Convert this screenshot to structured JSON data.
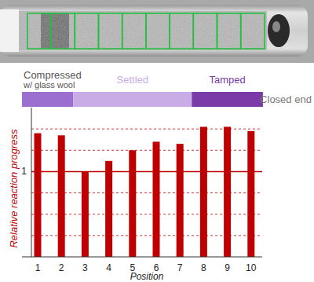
{
  "chart_data": {
    "type": "bar",
    "x_label": "Position",
    "y_label": "Relative reaction progress",
    "categories": [
      "1",
      "2",
      "3",
      "4",
      "5",
      "6",
      "7",
      "8",
      "9",
      "10"
    ],
    "values": [
      1.18,
      1.17,
      1.0,
      1.05,
      1.1,
      1.14,
      1.13,
      1.21,
      1.21,
      1.19
    ],
    "color": "#c00000",
    "ylim": [
      0.6,
      1.3
    ],
    "yticks": [
      {
        "value": 0.7,
        "label": null
      },
      {
        "value": 0.8,
        "label": null
      },
      {
        "value": 0.9,
        "label": null
      },
      1,
      {
        "value": 1.1,
        "label": null
      },
      {
        "value": 1.2,
        "label": null
      }
    ],
    "grid": true,
    "regions": [
      {
        "label": [
          "Compressed",
          "w/ glass wool"
        ],
        "from": "1",
        "to": "2",
        "color": "#9b6fd0"
      },
      {
        "label": [
          "Settled"
        ],
        "from": "3",
        "to": "7",
        "color": "#c9abe6"
      },
      {
        "label": [
          "Tamped"
        ],
        "from": "8",
        "to": "10",
        "color": "#7a3aa8"
      }
    ],
    "annotation": "Closed end"
  }
}
